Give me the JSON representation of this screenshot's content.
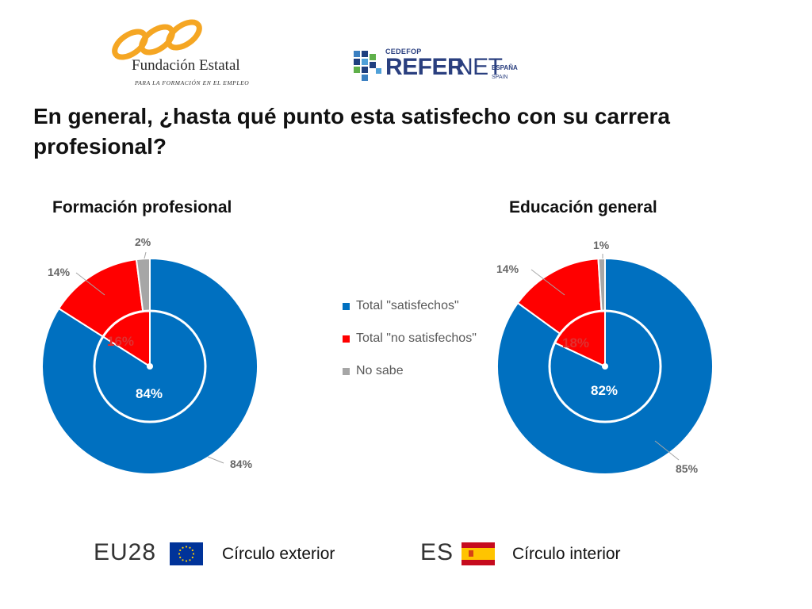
{
  "header": {
    "fundacion_name": "Fundación Estatal",
    "fundacion_sub": "PARA LA FORMACIÓN EN EL EMPLEO",
    "refernet_cedefop": "CEDEFOP",
    "refernet_refer": "REFER",
    "refernet_net": "NET",
    "refernet_espana": "ESPAÑA",
    "refernet_spain": "SPAIN"
  },
  "title": "En general, ¿hasta qué punto esta satisfecho con su carrera profesional?",
  "legend": [
    {
      "label": "Total \"satisfechos\"",
      "color": "#0070C0"
    },
    {
      "label": "Total \"no satisfechos\"",
      "color": "#FF0000"
    },
    {
      "label": "No sabe",
      "color": "#A6A6A6"
    }
  ],
  "footer": {
    "eu_code": "EU28",
    "eu_label": "Círculo exterior",
    "es_code": "ES",
    "es_label": "Círculo interior"
  },
  "colors": {
    "satisfied": "#0070C0",
    "unsatisfied": "#FF0000",
    "unknown": "#A6A6A6"
  },
  "chart_data": [
    {
      "type": "pie",
      "title": "Formación profesional",
      "outer_ring": {
        "name": "EU28",
        "categories": [
          "Total \"satisfechos\"",
          "Total \"no satisfechos\"",
          "No sabe"
        ],
        "values": [
          84,
          14,
          2
        ],
        "labels": [
          "84%",
          "14%",
          "2%"
        ]
      },
      "inner_ring": {
        "name": "ES",
        "categories": [
          "Total \"satisfechos\"",
          "Total \"no satisfechos\""
        ],
        "values": [
          84,
          16
        ],
        "labels": [
          "84%",
          "16%"
        ]
      },
      "legend_position": "center"
    },
    {
      "type": "pie",
      "title": "Educación general",
      "outer_ring": {
        "name": "EU28",
        "categories": [
          "Total \"satisfechos\"",
          "Total \"no satisfechos\"",
          "No sabe"
        ],
        "values": [
          85,
          14,
          1
        ],
        "labels": [
          "85%",
          "14%",
          "1%"
        ]
      },
      "inner_ring": {
        "name": "ES",
        "categories": [
          "Total \"satisfechos\"",
          "Total \"no satisfechos\""
        ],
        "values": [
          82,
          18
        ],
        "labels": [
          "82%",
          "18%"
        ]
      },
      "legend_position": "center"
    }
  ]
}
